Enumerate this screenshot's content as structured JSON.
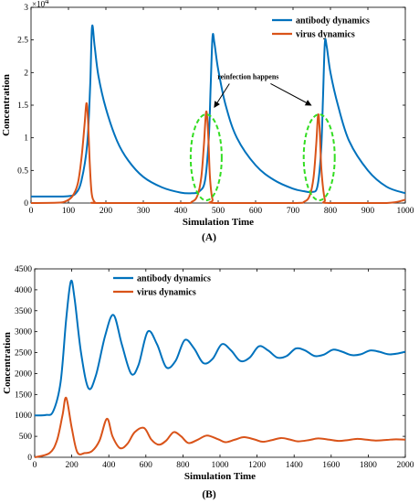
{
  "chart_data": [
    {
      "panel_label": "(A)",
      "type": "line",
      "xlabel": "Simulation Time",
      "ylabel": "Concentration",
      "xlim": [
        0,
        1000
      ],
      "ylim": [
        0,
        30000
      ],
      "y_exponent_label": "×10",
      "y_exponent_power": "4",
      "xticks": [
        "0",
        "100",
        "200",
        "300",
        "400",
        "500",
        "600",
        "700",
        "800",
        "900",
        "1000"
      ],
      "yticks": [
        "0",
        "0.5",
        "1",
        "1.5",
        "2",
        "2.5",
        "3"
      ],
      "legend_position": "top-right",
      "annotation": "reinfection happens",
      "series": [
        {
          "name": "antibody dynamics",
          "color": "#0072BD",
          "x": [
            0,
            60,
            100,
            120,
            135,
            150,
            158,
            163,
            170,
            180,
            200,
            230,
            260,
            300,
            350,
            400,
            430,
            450,
            465,
            475,
            480,
            485,
            490,
            500,
            520,
            550,
            600,
            650,
            700,
            730,
            750,
            765,
            775,
            780,
            785,
            790,
            800,
            820,
            850,
            900,
            950,
            1000
          ],
          "y": [
            1000,
            1000,
            1050,
            1500,
            3500,
            9000,
            18000,
            27000,
            24000,
            19500,
            14500,
            9500,
            6500,
            4000,
            2400,
            1600,
            1500,
            1800,
            3500,
            10000,
            18000,
            25500,
            24500,
            20500,
            15000,
            10000,
            5800,
            3500,
            2200,
            1800,
            1700,
            2500,
            8000,
            16000,
            24500,
            24000,
            20000,
            15000,
            9500,
            5000,
            2500,
            1500
          ]
        },
        {
          "name": "virus dynamics",
          "color": "#D95319",
          "x": [
            0,
            70,
            90,
            110,
            125,
            135,
            143,
            148,
            152,
            157,
            162,
            170,
            180,
            400,
            430,
            445,
            455,
            462,
            468,
            473,
            478,
            485,
            495,
            700,
            730,
            745,
            755,
            762,
            767,
            771,
            776,
            785,
            795,
            950,
            1000
          ],
          "y": [
            0,
            50,
            200,
            1000,
            3000,
            7000,
            12000,
            15300,
            13000,
            6000,
            1500,
            150,
            0,
            0,
            200,
            1200,
            4000,
            9000,
            14000,
            11000,
            4000,
            500,
            0,
            0,
            200,
            1200,
            4000,
            9000,
            13500,
            11500,
            5000,
            500,
            0,
            0,
            500
          ]
        }
      ]
    },
    {
      "panel_label": "(B)",
      "type": "line",
      "xlabel": "Simulation Time",
      "ylabel": "Concentration",
      "xlim": [
        0,
        2000
      ],
      "ylim": [
        0,
        4500
      ],
      "xticks": [
        "0",
        "200",
        "400",
        "600",
        "800",
        "1000",
        "1200",
        "1400",
        "1600",
        "1800",
        "2000"
      ],
      "yticks": [
        "0",
        "500",
        "1000",
        "1500",
        "2000",
        "2500",
        "3000",
        "3500",
        "4000",
        "4500"
      ],
      "legend_position": "top-center",
      "series": [
        {
          "name": "antibody dynamics",
          "color": "#0072BD",
          "x": [
            0,
            60,
            100,
            140,
            170,
            195,
            215,
            250,
            290,
            330,
            380,
            425,
            470,
            520,
            560,
            610,
            660,
            710,
            760,
            810,
            860,
            910,
            960,
            1010,
            1060,
            1110,
            1160,
            1210,
            1260,
            1310,
            1360,
            1410,
            1460,
            1510,
            1560,
            1610,
            1660,
            1710,
            1760,
            1810,
            1860,
            1910,
            1960,
            2000
          ],
          "y": [
            1000,
            1010,
            1100,
            1800,
            3300,
            4200,
            3800,
            2500,
            1650,
            1950,
            2900,
            3400,
            2700,
            2000,
            2200,
            3000,
            2700,
            2150,
            2300,
            2800,
            2600,
            2250,
            2350,
            2700,
            2550,
            2300,
            2380,
            2650,
            2550,
            2380,
            2420,
            2600,
            2550,
            2420,
            2450,
            2570,
            2520,
            2440,
            2460,
            2550,
            2520,
            2460,
            2480,
            2520
          ]
        },
        {
          "name": "virus dynamics",
          "color": "#D95319",
          "x": [
            0,
            80,
            120,
            150,
            170,
            200,
            230,
            270,
            310,
            350,
            390,
            420,
            460,
            500,
            540,
            590,
            630,
            670,
            710,
            750,
            790,
            830,
            880,
            930,
            990,
            1030,
            1080,
            1130,
            1190,
            1230,
            1280,
            1330,
            1380,
            1420,
            1480,
            1530,
            1590,
            1640,
            1690,
            1740,
            1790,
            1840,
            1900,
            1950,
            2000
          ],
          "y": [
            0,
            100,
            400,
            1000,
            1420,
            700,
            120,
            100,
            150,
            400,
            920,
            500,
            220,
            320,
            600,
            700,
            420,
            300,
            400,
            600,
            500,
            340,
            420,
            520,
            430,
            360,
            420,
            480,
            420,
            370,
            410,
            460,
            420,
            380,
            410,
            450,
            420,
            390,
            410,
            440,
            420,
            400,
            415,
            430,
            420
          ]
        }
      ]
    }
  ]
}
